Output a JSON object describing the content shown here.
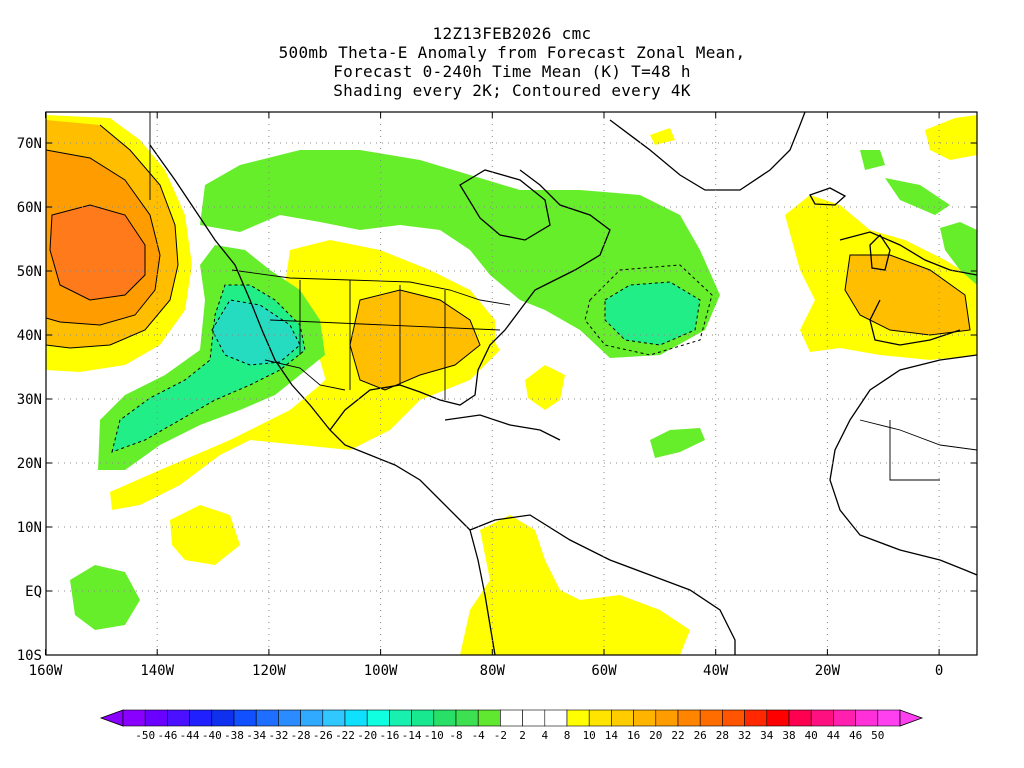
{
  "title": {
    "line1": "12Z13FEB2026 cmc",
    "line2": "500mb Theta-E Anomaly from Forecast Zonal Mean,",
    "line3": "Forecast 0-240h Time Mean (K) T=48 h",
    "line4": "Shading every 2K; Contoured every 4K"
  },
  "axes": {
    "x_labels": [
      "160W",
      "140W",
      "120W",
      "100W",
      "80W",
      "60W",
      "40W",
      "20W",
      "0"
    ],
    "y_labels": [
      "70N",
      "60N",
      "50N",
      "40N",
      "30N",
      "20N",
      "10N",
      "EQ",
      "10S"
    ]
  },
  "colorbar": {
    "labels": [
      "-50",
      "-46",
      "-44",
      "-40",
      "-38",
      "-34",
      "-32",
      "-28",
      "-26",
      "-22",
      "-20",
      "-16",
      "-14",
      "-10",
      "-8",
      "-4",
      "-2",
      "2",
      "4",
      "8",
      "10",
      "14",
      "16",
      "20",
      "22",
      "26",
      "28",
      "32",
      "34",
      "38",
      "40",
      "44",
      "46",
      "50"
    ],
    "colors": [
      "#8a00ff",
      "#6a00ff",
      "#4a10ff",
      "#2020ff",
      "#1030f0",
      "#1050ff",
      "#1e6eff",
      "#2a8cff",
      "#30aaff",
      "#30c8ff",
      "#10e0ff",
      "#10ffe0",
      "#18f0b0",
      "#18e890",
      "#28e068",
      "#3ce050",
      "#60e830",
      "#ffffff",
      "#ffffff",
      "#ffffff",
      "#ffff00",
      "#ffe400",
      "#ffcc00",
      "#ffb400",
      "#ff9c00",
      "#ff8400",
      "#ff6c00",
      "#ff5400",
      "#ff2800",
      "#ff0000",
      "#ff0050",
      "#ff1080",
      "#ff20b0",
      "#ff30d8",
      "#ff40f0"
    ],
    "color_scale": {
      "green_light": "#66ee2a",
      "green_mid": "#22ee88",
      "teal": "#26dcc0",
      "yellow": "#ffff00",
      "yellow_orange": "#ffe000",
      "orange_light": "#ffbf00",
      "orange": "#ff9c00",
      "red_orange": "#ff7a1a"
    }
  }
}
